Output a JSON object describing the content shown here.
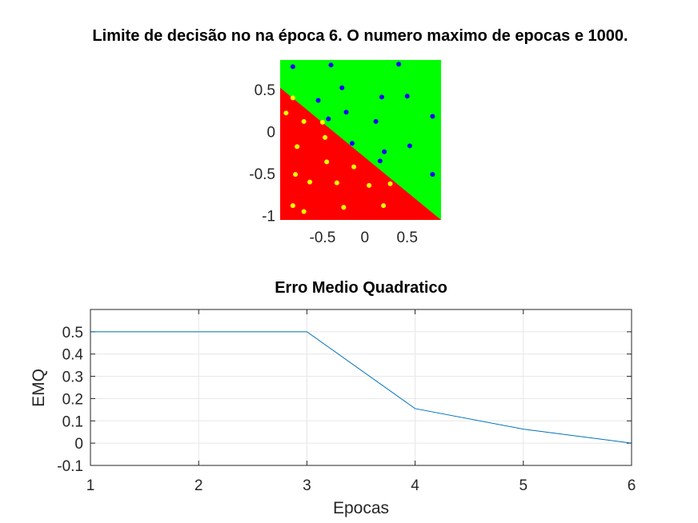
{
  "chart_data": [
    {
      "type": "scatter",
      "title": "Limite de decisão no na época 6. O numero maximo de epocas e 1000.",
      "xlabel": "",
      "ylabel": "",
      "xlim": [
        -1,
        0.9
      ],
      "ylim": [
        -1.05,
        0.85
      ],
      "xticks": [
        -0.5,
        0,
        0.5
      ],
      "xtick_labels": [
        "-0.5",
        "0",
        "0.5"
      ],
      "yticks": [
        -1,
        -0.5,
        0,
        0.5
      ],
      "ytick_labels": [
        "-1",
        "-0.5",
        "0",
        "0.5"
      ],
      "grid": false,
      "regions": [
        {
          "color": "#00ff00",
          "side": "above"
        },
        {
          "color": "#ff0000",
          "side": "below"
        }
      ],
      "boundary": [
        [
          -1,
          0.52
        ],
        [
          0.9,
          -1.05
        ]
      ],
      "series": [
        {
          "color": "#0000ff",
          "points": [
            [
              -0.85,
              0.77
            ],
            [
              -0.4,
              0.79
            ],
            [
              0.4,
              0.8
            ],
            [
              -0.27,
              0.52
            ],
            [
              0.2,
              0.41
            ],
            [
              0.5,
              0.42
            ],
            [
              -0.55,
              0.37
            ],
            [
              -0.22,
              0.23
            ],
            [
              -0.43,
              0.15
            ],
            [
              0.13,
              0.12
            ],
            [
              0.8,
              0.18
            ],
            [
              -0.15,
              -0.14
            ],
            [
              0.23,
              -0.24
            ],
            [
              0.53,
              -0.17
            ],
            [
              0.18,
              -0.35
            ],
            [
              0.8,
              -0.51
            ]
          ]
        },
        {
          "color": "#ffff00",
          "points": [
            [
              -0.85,
              0.4
            ],
            [
              -0.93,
              0.22
            ],
            [
              -0.72,
              0.12
            ],
            [
              -0.5,
              0.11
            ],
            [
              -0.8,
              -0.18
            ],
            [
              -0.47,
              -0.07
            ],
            [
              -0.82,
              -0.51
            ],
            [
              -0.45,
              -0.36
            ],
            [
              -0.65,
              -0.6
            ],
            [
              -0.33,
              -0.61
            ],
            [
              -0.13,
              -0.42
            ],
            [
              0.05,
              -0.64
            ],
            [
              0.3,
              -0.62
            ],
            [
              -0.85,
              -0.88
            ],
            [
              -0.72,
              -0.95
            ],
            [
              -0.25,
              -0.9
            ],
            [
              0.22,
              -0.88
            ]
          ]
        }
      ]
    },
    {
      "type": "line",
      "title": "Erro Medio Quadratico",
      "xlabel": "Epocas",
      "ylabel": "EMQ",
      "xlim": [
        1,
        6
      ],
      "ylim": [
        -0.1,
        0.6
      ],
      "xticks": [
        1,
        2,
        3,
        4,
        5,
        6
      ],
      "xtick_labels": [
        "1",
        "2",
        "3",
        "4",
        "5",
        "6"
      ],
      "yticks": [
        -0.1,
        0,
        0.1,
        0.2,
        0.3,
        0.4,
        0.5
      ],
      "ytick_labels": [
        "-0.1",
        "0",
        "0.1",
        "0.2",
        "0.3",
        "0.4",
        "0.5"
      ],
      "grid": true,
      "series": [
        {
          "color": "#0072bd",
          "x": [
            1,
            2,
            3,
            4,
            5,
            6
          ],
          "values": [
            0.5,
            0.5,
            0.5,
            0.155,
            0.063,
            0.0
          ]
        }
      ]
    }
  ]
}
